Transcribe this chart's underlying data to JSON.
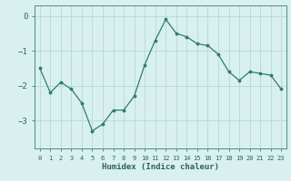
{
  "x": [
    0,
    1,
    2,
    3,
    4,
    5,
    6,
    7,
    8,
    9,
    10,
    11,
    12,
    13,
    14,
    15,
    16,
    17,
    18,
    19,
    20,
    21,
    22,
    23
  ],
  "y": [
    -1.5,
    -2.2,
    -1.9,
    -2.1,
    -2.5,
    -3.3,
    -3.1,
    -2.7,
    -2.7,
    -2.3,
    -1.4,
    -0.7,
    -0.1,
    -0.5,
    -0.6,
    -0.8,
    -0.85,
    -1.1,
    -1.6,
    -1.85,
    -1.6,
    -1.65,
    -1.7,
    -2.1
  ],
  "line_color": "#2e7d6e",
  "marker_color": "#2e7d6e",
  "bg_color": "#d8f0ef",
  "grid_color": "#b8d8d4",
  "axis_color": "#4a9080",
  "xlabel": "Humidex (Indice chaleur)",
  "ylim": [
    -3.8,
    0.3
  ],
  "xlim": [
    -0.5,
    23.5
  ],
  "yticks": [
    0,
    -1,
    -2,
    -3
  ],
  "font_color": "#2e6060"
}
